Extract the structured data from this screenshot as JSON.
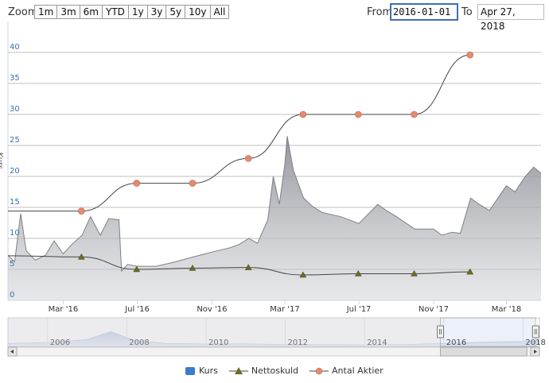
{
  "toolbar": {
    "zoom_label": "Zoom",
    "zoom_buttons": [
      "1m",
      "3m",
      "6m",
      "YTD",
      "1y",
      "3y",
      "5y",
      "10y",
      "All"
    ],
    "from_label": "From",
    "from_value": "2016-01-01",
    "to_label": "To",
    "to_value": "Apr 27, 2018"
  },
  "chart_data": {
    "type": "line",
    "ylabel": "Kurs",
    "ylim": [
      0,
      45
    ],
    "yticks": [
      0,
      5,
      10,
      15,
      20,
      25,
      30,
      35,
      40
    ],
    "xlim": [
      "2015-12-01",
      "2018-04-27"
    ],
    "xticks": [
      {
        "date": "2016-03-01",
        "label": "Mar '16"
      },
      {
        "date": "2016-07-01",
        "label": "Jul '16"
      },
      {
        "date": "2016-11-01",
        "label": "Nov '16"
      },
      {
        "date": "2017-03-01",
        "label": "Mar '17"
      },
      {
        "date": "2017-07-01",
        "label": "Jul '17"
      },
      {
        "date": "2017-11-01",
        "label": "Nov '17"
      },
      {
        "date": "2018-03-01",
        "label": "Mar '18"
      }
    ],
    "series": [
      {
        "name": "Kurs",
        "color": "#7f8088",
        "points": [
          [
            "2015-12-01",
            7.3
          ],
          [
            "2015-12-12",
            6.2
          ],
          [
            "2015-12-22",
            14.0
          ],
          [
            "2015-12-31",
            8.0
          ],
          [
            "2016-01-15",
            6.5
          ],
          [
            "2016-02-01",
            7.3
          ],
          [
            "2016-02-15",
            9.6
          ],
          [
            "2016-03-01",
            7.5
          ],
          [
            "2016-03-15",
            9.0
          ],
          [
            "2016-04-01",
            10.5
          ],
          [
            "2016-04-15",
            13.5
          ],
          [
            "2016-05-01",
            10.5
          ],
          [
            "2016-05-15",
            13.2
          ],
          [
            "2016-06-01",
            13.0
          ],
          [
            "2016-06-05",
            4.7
          ],
          [
            "2016-06-15",
            5.8
          ],
          [
            "2016-07-01",
            5.5
          ],
          [
            "2016-08-01",
            5.5
          ],
          [
            "2016-09-01",
            6.2
          ],
          [
            "2016-10-01",
            7.0
          ],
          [
            "2016-11-01",
            7.8
          ],
          [
            "2016-12-01",
            8.5
          ],
          [
            "2016-12-15",
            9.0
          ],
          [
            "2017-01-01",
            10.0
          ],
          [
            "2017-01-15",
            9.2
          ],
          [
            "2017-02-01",
            13.0
          ],
          [
            "2017-02-10",
            20.0
          ],
          [
            "2017-02-20",
            15.5
          ],
          [
            "2017-03-01",
            22.0
          ],
          [
            "2017-03-05",
            26.5
          ],
          [
            "2017-03-15",
            21.0
          ],
          [
            "2017-04-01",
            16.5
          ],
          [
            "2017-04-15",
            15.2
          ],
          [
            "2017-05-01",
            14.2
          ],
          [
            "2017-06-01",
            13.5
          ],
          [
            "2017-07-01",
            12.4
          ],
          [
            "2017-08-01",
            15.5
          ],
          [
            "2017-08-15",
            14.5
          ],
          [
            "2017-09-01",
            13.5
          ],
          [
            "2017-10-01",
            11.5
          ],
          [
            "2017-11-01",
            11.5
          ],
          [
            "2017-11-15",
            10.5
          ],
          [
            "2017-12-01",
            11.0
          ],
          [
            "2017-12-15",
            10.8
          ],
          [
            "2018-01-01",
            16.5
          ],
          [
            "2018-01-15",
            15.5
          ],
          [
            "2018-02-01",
            14.5
          ],
          [
            "2018-02-15",
            16.5
          ],
          [
            "2018-03-01",
            18.5
          ],
          [
            "2018-03-15",
            17.5
          ],
          [
            "2018-04-01",
            20.0
          ],
          [
            "2018-04-15",
            21.5
          ],
          [
            "2018-04-27",
            20.5
          ]
        ]
      },
      {
        "name": "Nettoskuld",
        "color": "#6b6b2a",
        "points": [
          [
            "2015-12-01",
            7.2
          ],
          [
            "2016-03-31",
            7.0
          ],
          [
            "2016-06-30",
            5.0
          ],
          [
            "2016-09-30",
            5.2
          ],
          [
            "2016-12-31",
            5.3
          ],
          [
            "2017-03-31",
            4.1
          ],
          [
            "2017-06-30",
            4.3
          ],
          [
            "2017-09-30",
            4.3
          ],
          [
            "2017-12-31",
            4.6
          ]
        ]
      },
      {
        "name": "Antal Aktier",
        "color": "#e8896d",
        "points": [
          [
            "2015-12-01",
            14.4
          ],
          [
            "2016-03-31",
            14.4
          ],
          [
            "2016-06-30",
            18.9
          ],
          [
            "2016-09-30",
            18.9
          ],
          [
            "2016-12-31",
            22.9
          ],
          [
            "2017-03-31",
            30.0
          ],
          [
            "2017-06-30",
            30.0
          ],
          [
            "2017-09-30",
            30.0
          ],
          [
            "2017-12-31",
            39.6
          ]
        ]
      }
    ],
    "navigator": {
      "labels": [
        "2006",
        "2008",
        "2010",
        "2012",
        "2014",
        "2016",
        "2018"
      ],
      "range": [
        "2005-01-01",
        "2018-06-01"
      ]
    },
    "legend": {
      "position": "bottom-center"
    }
  }
}
